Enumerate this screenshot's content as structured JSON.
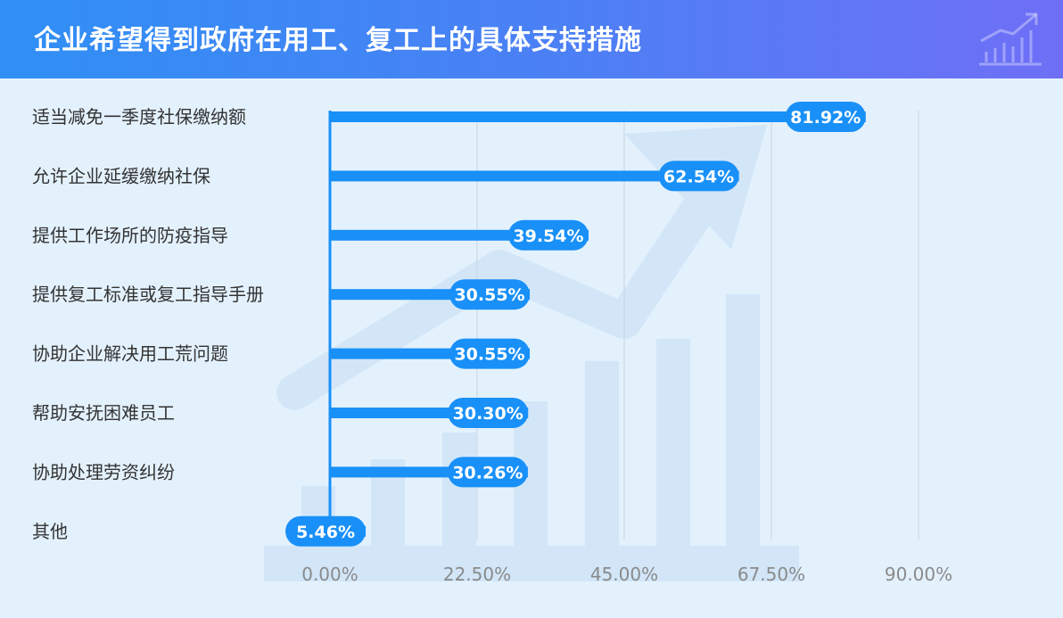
{
  "header": {
    "title": "企业希望得到政府在用工、复工上的具体支持措施",
    "icon": "growth-chart-icon"
  },
  "colors": {
    "bar": "#1890f8",
    "header_start": "#2f8ff5",
    "header_end": "#6f6ff6",
    "background": "#e3f1fd"
  },
  "chart_data": {
    "type": "bar",
    "orientation": "horizontal",
    "title": "企业希望得到政府在用工、复工上的具体支持措施",
    "categories": [
      "适当减免一季度社保缴纳额",
      "允许企业延缓缴纳社保",
      "提供工作场所的防疫指导",
      "提供复工标准或复工指导手册",
      "协助企业解决用工荒问题",
      "帮助安抚困难员工",
      "协助处理劳资纠纷",
      "其他"
    ],
    "values": [
      81.92,
      62.54,
      39.54,
      30.55,
      30.55,
      30.3,
      30.26,
      5.46
    ],
    "value_labels": [
      "81.92%",
      "62.54%",
      "39.54%",
      "30.55%",
      "30.55%",
      "30.30%",
      "30.26%",
      "5.46%"
    ],
    "xlim": [
      0,
      90
    ],
    "x_ticks": [
      0,
      22.5,
      45,
      67.5,
      90
    ],
    "x_tick_labels": [
      "0.00%",
      "22.50%",
      "45.00%",
      "67.50%",
      "90.00%"
    ],
    "xlabel": "",
    "ylabel": "",
    "grid": "vertical",
    "legend": "none"
  }
}
